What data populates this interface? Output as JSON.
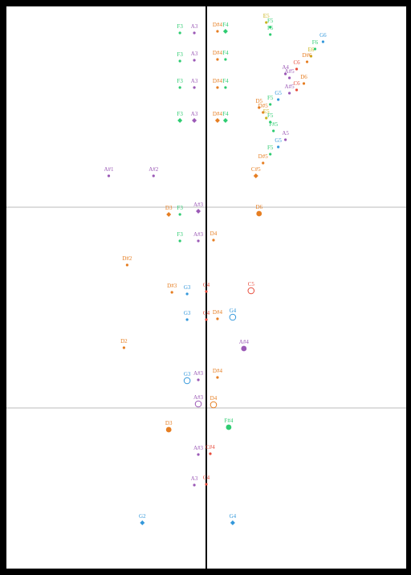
{
  "colors": {
    "F": "#2ecc71",
    "A": "#9b59b6",
    "D": "#e67e22",
    "G": "#3498db",
    "E": "#c9b520",
    "C": "#e74c3c",
    "line": "#000000",
    "hline": "#bbbbbb"
  },
  "chart_data": {
    "type": "scatter",
    "title": "",
    "xlabel": "",
    "ylabel": "",
    "grid": false,
    "xlim": [
      -250,
      250
    ],
    "ylim": [
      -700,
      0
    ],
    "center_line_x": 0,
    "horizontal_lines_y": [
      -250,
      -500
    ],
    "points": [
      {
        "label": "E5",
        "x": 75,
        "y": -20,
        "marker": "dot",
        "color": "E"
      },
      {
        "label": "F5",
        "x": 80,
        "y": -26,
        "marker": "dot",
        "color": "F"
      },
      {
        "label": "F5",
        "x": 80,
        "y": -35,
        "marker": "dot",
        "color": "F"
      },
      {
        "label": "F3",
        "x": -33,
        "y": -33,
        "marker": "dot",
        "color": "F"
      },
      {
        "label": "A3",
        "x": -15,
        "y": -33,
        "marker": "dot",
        "color": "A"
      },
      {
        "label": "D#4",
        "x": 14,
        "y": -31,
        "marker": "dot",
        "color": "D"
      },
      {
        "label": "F4",
        "x": 24,
        "y": -31,
        "marker": "diamond",
        "color": "F"
      },
      {
        "label": "G6",
        "x": 146,
        "y": -44,
        "marker": "dot",
        "color": "G"
      },
      {
        "label": "F6",
        "x": 136,
        "y": -53,
        "marker": "dot",
        "color": "F"
      },
      {
        "label": "E6",
        "x": 131,
        "y": -62,
        "marker": "dot",
        "color": "E"
      },
      {
        "label": "D#6",
        "x": 126,
        "y": -69,
        "marker": "dot",
        "color": "D"
      },
      {
        "label": "F3",
        "x": -33,
        "y": -68,
        "marker": "dot",
        "color": "F"
      },
      {
        "label": "A3",
        "x": -15,
        "y": -67,
        "marker": "dot",
        "color": "A"
      },
      {
        "label": "D#4",
        "x": 14,
        "y": -66,
        "marker": "dot",
        "color": "D"
      },
      {
        "label": "F4",
        "x": 24,
        "y": -66,
        "marker": "dot",
        "color": "F"
      },
      {
        "label": "C6",
        "x": 113,
        "y": -78,
        "marker": "dot",
        "color": "C"
      },
      {
        "label": "A4",
        "x": 99,
        "y": -84,
        "marker": "dot",
        "color": "A"
      },
      {
        "label": "A#5",
        "x": 104,
        "y": -89,
        "marker": "dot",
        "color": "A"
      },
      {
        "label": "D6",
        "x": 122,
        "y": -96,
        "marker": "dot",
        "color": "D"
      },
      {
        "label": "C6",
        "x": 113,
        "y": -104,
        "marker": "dot",
        "color": "C"
      },
      {
        "label": "A#5",
        "x": 104,
        "y": -108,
        "marker": "dot",
        "color": "A"
      },
      {
        "label": "F3",
        "x": -33,
        "y": -101,
        "marker": "dot",
        "color": "F"
      },
      {
        "label": "A3",
        "x": -15,
        "y": -101,
        "marker": "dot",
        "color": "A"
      },
      {
        "label": "D#4",
        "x": 14,
        "y": -101,
        "marker": "dot",
        "color": "D"
      },
      {
        "label": "F4",
        "x": 24,
        "y": -101,
        "marker": "dot",
        "color": "F"
      },
      {
        "label": "G5",
        "x": 90,
        "y": -116,
        "marker": "dot",
        "color": "G"
      },
      {
        "label": "F5",
        "x": 80,
        "y": -122,
        "marker": "dot",
        "color": "F"
      },
      {
        "label": "D5",
        "x": 66,
        "y": -126,
        "marker": "dot",
        "color": "D"
      },
      {
        "label": "D#5",
        "x": 71,
        "y": -132,
        "marker": "dot",
        "color": "D"
      },
      {
        "label": "E5",
        "x": 75,
        "y": -139,
        "marker": "dot",
        "color": "E"
      },
      {
        "label": "F5",
        "x": 80,
        "y": -144,
        "marker": "dot",
        "color": "F"
      },
      {
        "label": "F3",
        "x": -33,
        "y": -142,
        "marker": "diamond",
        "color": "F"
      },
      {
        "label": "A3",
        "x": -15,
        "y": -142,
        "marker": "diamond",
        "color": "A"
      },
      {
        "label": "D#4",
        "x": 14,
        "y": -142,
        "marker": "diamond",
        "color": "D"
      },
      {
        "label": "F4",
        "x": 24,
        "y": -142,
        "marker": "diamond",
        "color": "F"
      },
      {
        "label": "F#5",
        "x": 84,
        "y": -155,
        "marker": "dot",
        "color": "F"
      },
      {
        "label": "A5",
        "x": 99,
        "y": -166,
        "marker": "dot",
        "color": "A"
      },
      {
        "label": "G5",
        "x": 90,
        "y": -175,
        "marker": "dot",
        "color": "G"
      },
      {
        "label": "F5",
        "x": 80,
        "y": -184,
        "marker": "dot",
        "color": "F"
      },
      {
        "label": "D#5",
        "x": 71,
        "y": -195,
        "marker": "dot",
        "color": "D"
      },
      {
        "label": "C#5",
        "x": 62,
        "y": -211,
        "marker": "diamond",
        "color": "D"
      },
      {
        "label": "A#1",
        "x": -122,
        "y": -211,
        "marker": "dot",
        "color": "A"
      },
      {
        "label": "A#2",
        "x": -66,
        "y": -211,
        "marker": "dot",
        "color": "A"
      },
      {
        "label": "A#3",
        "x": -10,
        "y": -255,
        "marker": "diamond",
        "color": "A"
      },
      {
        "label": "D6",
        "x": 66,
        "y": -258,
        "marker": "big",
        "color": "D"
      },
      {
        "label": "D3",
        "x": -47,
        "y": -259,
        "marker": "diamond",
        "color": "D"
      },
      {
        "label": "F3",
        "x": -33,
        "y": -259,
        "marker": "dot",
        "color": "F"
      },
      {
        "label": "F3",
        "x": -33,
        "y": -292,
        "marker": "dot",
        "color": "F"
      },
      {
        "label": "A#3",
        "x": -10,
        "y": -292,
        "marker": "dot",
        "color": "A"
      },
      {
        "label": "D4",
        "x": 9,
        "y": -291,
        "marker": "dot",
        "color": "D"
      },
      {
        "label": "D#2",
        "x": -99,
        "y": -322,
        "marker": "dot",
        "color": "D"
      },
      {
        "label": "D#3",
        "x": -43,
        "y": -356,
        "marker": "dot",
        "color": "D"
      },
      {
        "label": "G3",
        "x": -24,
        "y": -358,
        "marker": "dot",
        "color": "G"
      },
      {
        "label": "C4",
        "x": 0,
        "y": -355,
        "marker": "dot",
        "color": "C"
      },
      {
        "label": "C5",
        "x": 56,
        "y": -354,
        "marker": "ring",
        "color": "C"
      },
      {
        "label": "G3",
        "x": -24,
        "y": -390,
        "marker": "dot",
        "color": "G"
      },
      {
        "label": "C4",
        "x": 0,
        "y": -390,
        "marker": "dot",
        "color": "C"
      },
      {
        "label": "D#4",
        "x": 14,
        "y": -389,
        "marker": "dot",
        "color": "D"
      },
      {
        "label": "G4",
        "x": 33,
        "y": -387,
        "marker": "ring",
        "color": "G"
      },
      {
        "label": "D2",
        "x": -103,
        "y": -425,
        "marker": "dot",
        "color": "D"
      },
      {
        "label": "A#4",
        "x": 47,
        "y": -426,
        "marker": "big",
        "color": "A"
      },
      {
        "label": "D#4",
        "x": 14,
        "y": -462,
        "marker": "dot",
        "color": "D"
      },
      {
        "label": "A#3",
        "x": -10,
        "y": -465,
        "marker": "dot",
        "color": "A"
      },
      {
        "label": "G3",
        "x": -24,
        "y": -466,
        "marker": "ring",
        "color": "G"
      },
      {
        "label": "A#3",
        "x": -10,
        "y": -495,
        "marker": "ring",
        "color": "A"
      },
      {
        "label": "D4",
        "x": 9,
        "y": -496,
        "marker": "ring",
        "color": "D"
      },
      {
        "label": "D3",
        "x": -47,
        "y": -527,
        "marker": "big",
        "color": "D"
      },
      {
        "label": "F#4",
        "x": 28,
        "y": -524,
        "marker": "big",
        "color": "F"
      },
      {
        "label": "A#3",
        "x": -10,
        "y": -558,
        "marker": "dot",
        "color": "A"
      },
      {
        "label": "C#4",
        "x": 5,
        "y": -557,
        "marker": "dot",
        "color": "C"
      },
      {
        "label": "A3",
        "x": -15,
        "y": -596,
        "marker": "dot",
        "color": "A"
      },
      {
        "label": "C4",
        "x": 0,
        "y": -595,
        "marker": "dot",
        "color": "C"
      },
      {
        "label": "G2",
        "x": -80,
        "y": -643,
        "marker": "diamond",
        "color": "G"
      },
      {
        "label": "G4",
        "x": 33,
        "y": -643,
        "marker": "diamond",
        "color": "G"
      }
    ]
  }
}
